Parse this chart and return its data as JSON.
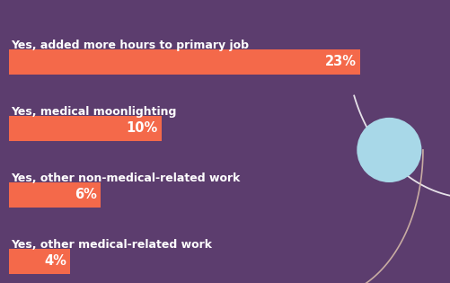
{
  "categories": [
    "Yes, added more hours to primary job",
    "Yes, medical moonlighting",
    "Yes, other non-medical-related work",
    "Yes, other medical-related work"
  ],
  "values": [
    23,
    10,
    6,
    4
  ],
  "max_val": 23,
  "bar_color": "#F4694A",
  "bg_color": "#5C3D6E",
  "text_color": "#FFFFFF",
  "label_fontsize": 9,
  "pct_fontsize": 10.5,
  "circle_color": "#A8D8E8",
  "white_line_color": "#FFFFFF",
  "peach_line_color": "#D4B8A8"
}
